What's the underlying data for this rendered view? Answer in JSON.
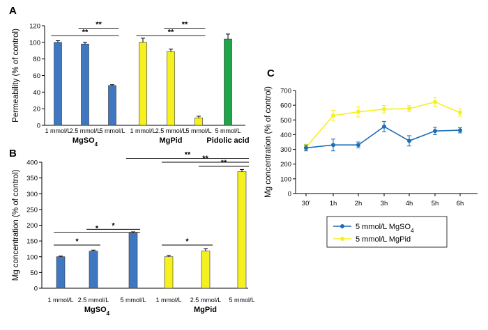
{
  "panels": {
    "a": "A",
    "b": "B",
    "c": "C"
  },
  "colors": {
    "blue": "#3f78c0",
    "yellow": "#f5f01e",
    "green": "#1fa64a",
    "line_blue": "#1d6db5",
    "line_yellow": "#f5f01e"
  },
  "chart_data": [
    {
      "type": "bar",
      "panel": "A",
      "ylabel": "Permeability (%  of control)",
      "ylim": [
        0,
        120
      ],
      "yticks": [
        0,
        20,
        40,
        60,
        80,
        100,
        120
      ],
      "categories": [
        "1 mmol/L",
        "2.5 mmol/L",
        "5 mmol/L",
        "1 mmol/L",
        "2.5 mmol/L",
        "5 mmol/L",
        "5 mmol/L"
      ],
      "values": [
        100,
        98,
        48,
        100,
        89,
        9,
        104
      ],
      "errors": [
        2,
        2,
        1,
        5,
        3,
        2,
        6
      ],
      "bar_colors": [
        "blue",
        "blue",
        "blue",
        "yellow",
        "yellow",
        "yellow",
        "green"
      ],
      "groups": [
        {
          "main": "MgSO",
          "sub": "4",
          "bars": [
            0,
            1,
            2
          ]
        },
        {
          "main": "MgPid",
          "sub": "",
          "bars": [
            3,
            4,
            5
          ]
        },
        {
          "main": "Pidolic acid",
          "sub": "",
          "bars": [
            6,
            6
          ]
        }
      ],
      "significance": [
        {
          "label": "**",
          "from": 1,
          "to": 2,
          "level": 117
        },
        {
          "label": "**",
          "from": 0,
          "to": 2,
          "level": 108
        },
        {
          "label": "**",
          "from": 4,
          "to": 5,
          "level": 117
        },
        {
          "label": "**",
          "from": 3,
          "to": 5,
          "level": 108
        }
      ]
    },
    {
      "type": "bar",
      "panel": "B",
      "ylabel": "Mg concentration (% of control)",
      "ylim": [
        0,
        400
      ],
      "yticks": [
        0,
        50,
        100,
        150,
        200,
        250,
        300,
        350,
        400
      ],
      "categories": [
        "1 mmol/L",
        "2.5 mmol/L",
        "5 mmol/L",
        "1 mmol/L",
        "2.5 mmol/L",
        "5 mmol/L"
      ],
      "values": [
        100,
        118,
        175,
        100,
        118,
        370
      ],
      "errors": [
        2,
        3,
        4,
        4,
        8,
        7
      ],
      "bar_colors": [
        "blue",
        "blue",
        "blue",
        "yellow",
        "yellow",
        "yellow"
      ],
      "groups": [
        {
          "main": "MgSO",
          "sub": "4",
          "bars": [
            0,
            1,
            2
          ]
        },
        {
          "main": "MgPid",
          "sub": "",
          "bars": [
            3,
            4,
            5
          ]
        }
      ],
      "significance": [
        {
          "label": "*",
          "from": 0,
          "to": 1,
          "level": 137
        },
        {
          "label": "*",
          "from": 1,
          "to": 2,
          "level": 187
        },
        {
          "label": "*",
          "from": 0,
          "to": 2,
          "level": 178
        },
        {
          "label": "*",
          "from": 3,
          "to": 4,
          "level": 137
        },
        {
          "label": "**",
          "from": 4,
          "to": 5,
          "level": 387
        },
        {
          "label": "**",
          "from": 3,
          "to": 5,
          "level": 400
        },
        {
          "label": "**",
          "from": 2,
          "to": 5,
          "level": 412
        }
      ]
    },
    {
      "type": "line",
      "panel": "C",
      "ylabel": "Mg concentration (%  of control)",
      "ylim": [
        0,
        700
      ],
      "yticks": [
        0,
        100,
        200,
        300,
        400,
        500,
        600,
        700
      ],
      "x": [
        "30'",
        "1h",
        "2h",
        "3h",
        "4h",
        "5h",
        "6h"
      ],
      "series": [
        {
          "name": "5 mmol/L MgSO",
          "sub": "4",
          "color": "line_blue",
          "values": [
            310,
            330,
            330,
            455,
            358,
            425,
            430
          ],
          "errors": [
            20,
            40,
            20,
            35,
            35,
            25,
            18
          ]
        },
        {
          "name": "5 mmol/L MgPid",
          "sub": "",
          "color": "line_yellow",
          "values": [
            315,
            530,
            555,
            573,
            577,
            622,
            550
          ],
          "errors": [
            20,
            35,
            35,
            25,
            20,
            30,
            25
          ]
        }
      ]
    }
  ]
}
